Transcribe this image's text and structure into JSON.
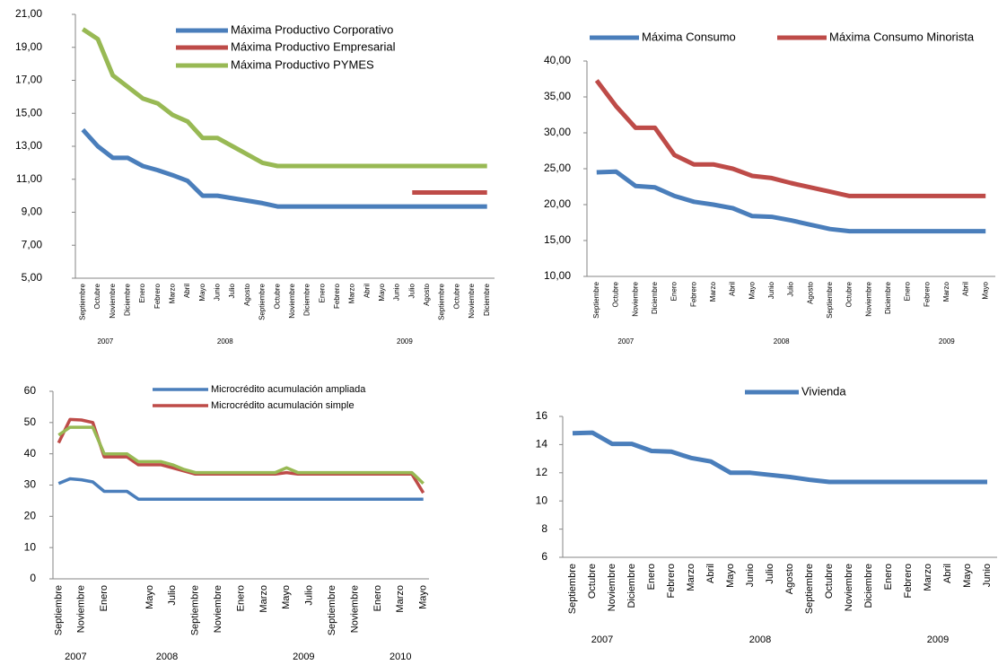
{
  "chart_data": [
    {
      "type": "line",
      "categories": [
        "Septiembre",
        "Octubre",
        "Noviembre",
        "Diciembre",
        "Enero",
        "Febrero",
        "Marzo",
        "Abril",
        "Mayo",
        "Junio",
        "Julio",
        "Agosto",
        "Septiembre",
        "Octubre",
        "Noviembre",
        "Diciembre",
        "Enero",
        "Febrero",
        "Marzo",
        "Abril",
        "Mayo",
        "Junio",
        "Julio",
        "Agosto",
        "Septiembre",
        "Octubre",
        "Noviembre",
        "Diciembre"
      ],
      "x_groups": [
        {
          "label": "2007",
          "span": 4
        },
        {
          "label": "2008",
          "span": 12
        },
        {
          "label": "2009",
          "span": 12
        }
      ],
      "series": [
        {
          "name": "Máxima Productivo Corporativo",
          "color": "#4a7ebb",
          "values": [
            14.0,
            13.0,
            12.3,
            12.3,
            11.8,
            11.55,
            11.25,
            10.9,
            10.0,
            10.0,
            9.85,
            9.7,
            9.55,
            9.35,
            9.35,
            9.35,
            9.35,
            9.35,
            9.35,
            9.35,
            9.35,
            9.35,
            9.35,
            9.35,
            9.35,
            9.35,
            9.35,
            9.35
          ]
        },
        {
          "name": "Máxima Productivo Empresarial",
          "color": "#be4b48",
          "values": [
            null,
            null,
            null,
            null,
            null,
            null,
            null,
            null,
            null,
            null,
            null,
            null,
            null,
            null,
            null,
            null,
            null,
            null,
            null,
            null,
            null,
            null,
            10.2,
            10.2,
            10.2,
            10.2,
            10.2,
            10.2
          ]
        },
        {
          "name": "Máxima Productivo PYMES",
          "color": "#98b954",
          "values": [
            20.1,
            19.5,
            17.3,
            16.6,
            15.9,
            15.6,
            14.9,
            14.5,
            13.5,
            13.5,
            13.0,
            12.5,
            12.0,
            11.8,
            11.8,
            11.8,
            11.8,
            11.8,
            11.8,
            11.8,
            11.8,
            11.8,
            11.8,
            11.8,
            11.8,
            11.8,
            11.8,
            11.8
          ]
        }
      ],
      "ylim": [
        5,
        21
      ],
      "yticks": [
        {
          "value": 5,
          "label": "5,00"
        },
        {
          "value": 7,
          "label": "7,00"
        },
        {
          "value": 9,
          "label": "9,00"
        },
        {
          "value": 11,
          "label": "11,00"
        },
        {
          "value": 13,
          "label": "13,00"
        },
        {
          "value": 15,
          "label": "15,00"
        },
        {
          "value": 17,
          "label": "17,00"
        },
        {
          "value": 19,
          "label": "19,00"
        },
        {
          "value": 21,
          "label": "21,00"
        }
      ],
      "legend": "top"
    },
    {
      "type": "line",
      "categories": [
        "Septiembre",
        "Octubre",
        "Noviembre",
        "Diciembre",
        "Enero",
        "Febrero",
        "Marzo",
        "Abril",
        "Mayo",
        "Junio",
        "Julio",
        "Agosto",
        "Septiembre",
        "Octubre",
        "Noviembre",
        "Diciembre",
        "Enero",
        "Febrero",
        "Marzo",
        "Abril",
        "Mayo"
      ],
      "x_groups": [
        {
          "label": "2007",
          "span": 4
        },
        {
          "label": "2008",
          "span": 12
        },
        {
          "label": "2009",
          "span": 5
        }
      ],
      "series": [
        {
          "name": "Máxima Consumo",
          "color": "#4a7ebb",
          "values": [
            24.5,
            24.6,
            22.6,
            22.4,
            21.2,
            20.4,
            20.0,
            19.5,
            18.4,
            18.3,
            17.8,
            17.2,
            16.6,
            16.3,
            16.3,
            16.3,
            16.3,
            16.3,
            16.3,
            16.3,
            16.3
          ]
        },
        {
          "name": "Máxima Consumo Minorista",
          "color": "#be4b48",
          "values": [
            37.3,
            33.7,
            30.7,
            30.7,
            26.9,
            25.6,
            25.6,
            25.0,
            24.0,
            23.7,
            23.0,
            22.4,
            21.8,
            21.2,
            21.2,
            21.2,
            21.2,
            21.2,
            21.2,
            21.2,
            21.2
          ]
        }
      ],
      "ylim": [
        10,
        40
      ],
      "yticks": [
        {
          "value": 10,
          "label": "10,00"
        },
        {
          "value": 15,
          "label": "15,00"
        },
        {
          "value": 20,
          "label": "20,00"
        },
        {
          "value": 25,
          "label": "25,00"
        },
        {
          "value": 30,
          "label": "30,00"
        },
        {
          "value": 35,
          "label": "35,00"
        },
        {
          "value": 40,
          "label": "40,00"
        }
      ],
      "legend": "top"
    },
    {
      "type": "line",
      "categories": [
        "Septiembre",
        null,
        "Noviembre",
        null,
        "Enero",
        null,
        null,
        null,
        "Mayo",
        null,
        "Julio",
        null,
        "Septiembre",
        null,
        "Noviembre",
        null,
        "Enero",
        null,
        "Marzo",
        null,
        "Mayo",
        null,
        "Julio",
        null,
        "Septiembre",
        null,
        "Noviembre",
        null,
        "Enero",
        null,
        "Marzo",
        null,
        "Mayo"
      ],
      "x_groups": [
        {
          "label": "2007",
          "span": 4
        },
        {
          "label": "2008",
          "span": 12
        },
        {
          "label": "2009",
          "span": 12
        },
        {
          "label": "2010",
          "span": 5
        }
      ],
      "series": [
        {
          "name": "Microcrédito acumulación  ampliada",
          "color": "#4a7ebb",
          "values": [
            30.5,
            32,
            31.7,
            31,
            28,
            28,
            28,
            25.5,
            25.5,
            25.5,
            25.5,
            25.5,
            25.5,
            25.5,
            25.5,
            25.5,
            25.5,
            25.5,
            25.5,
            25.5,
            25.5,
            25.5,
            25.5,
            25.5,
            25.5,
            25.5,
            25.5,
            25.5,
            25.5,
            25.5,
            25.5,
            25.5,
            25.5
          ]
        },
        {
          "name": "Microcrédito acumulación simple",
          "color": "#be4b48",
          "values": [
            43.5,
            51,
            50.8,
            50,
            39,
            39,
            39,
            36.5,
            36.5,
            36.5,
            35.5,
            34.5,
            33.5,
            33.5,
            33.5,
            33.5,
            33.5,
            33.5,
            33.5,
            33.5,
            34,
            33.5,
            33.5,
            33.5,
            33.5,
            33.5,
            33.5,
            33.5,
            33.5,
            33.5,
            33.5,
            33.5,
            27.5
          ]
        },
        {
          "color": "#98b954",
          "values": [
            46,
            48.5,
            48.5,
            48.5,
            40,
            40,
            40,
            37.5,
            37.5,
            37.5,
            36.5,
            35,
            34,
            34,
            34,
            34,
            34,
            34,
            34,
            34,
            35.5,
            34,
            34,
            34,
            34,
            34,
            34,
            34,
            34,
            34,
            34,
            34,
            30.5
          ]
        }
      ],
      "ylim": [
        0,
        60
      ],
      "yticks": [
        0,
        10,
        20,
        30,
        40,
        50,
        60
      ],
      "legend": "top"
    },
    {
      "type": "line",
      "categories": [
        "Septiembre",
        "Octubre",
        "Noviembre",
        "Diciembre",
        "Enero",
        "Febrero",
        "Marzo",
        "Abril",
        "Mayo",
        "Junio",
        "Julio",
        "Agosto",
        "Septiembre",
        "Octubre",
        "Noviembre",
        "Diciembre",
        "Enero",
        "Febrero",
        "Marzo",
        "Abril",
        "Mayo",
        "Junio"
      ],
      "x_groups": [
        {
          "label": "2007",
          "span": 4
        },
        {
          "label": "2008",
          "span": 12
        },
        {
          "label": "2009",
          "span": 6
        }
      ],
      "series": [
        {
          "name": "Vivienda",
          "color": "#4a7ebb",
          "values": [
            14.8,
            14.85,
            14.05,
            14.05,
            13.55,
            13.5,
            13.05,
            12.8,
            12.0,
            12.0,
            11.85,
            11.7,
            11.5,
            11.35,
            11.35,
            11.35,
            11.35,
            11.35,
            11.35,
            11.35,
            11.35,
            11.35
          ]
        }
      ],
      "ylim": [
        6,
        16
      ],
      "yticks": [
        6,
        8,
        10,
        12,
        14,
        16
      ],
      "legend": "top"
    }
  ]
}
